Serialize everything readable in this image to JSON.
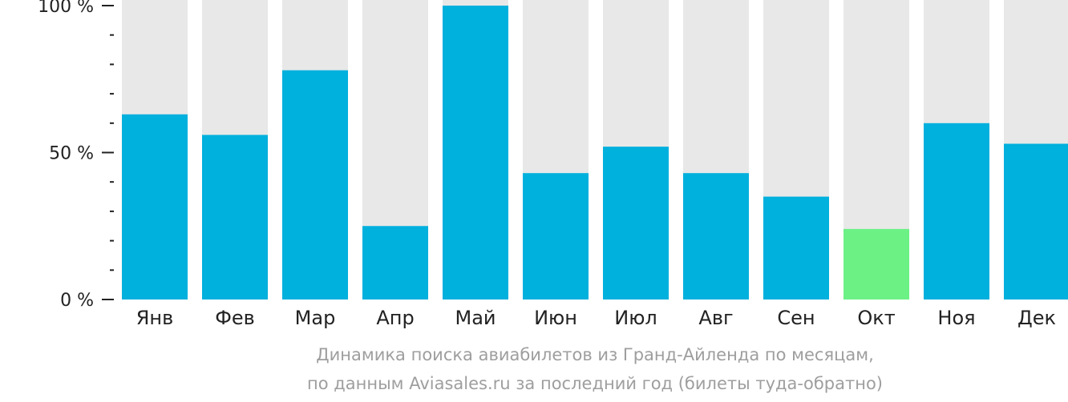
{
  "chart_data": {
    "type": "bar",
    "categories": [
      "Янв",
      "Фев",
      "Мар",
      "Апр",
      "Май",
      "Июн",
      "Июл",
      "Авг",
      "Сен",
      "Окт",
      "Ноя",
      "Дек"
    ],
    "values": [
      63,
      56,
      78,
      25,
      100,
      43,
      52,
      43,
      35,
      24,
      60,
      53
    ],
    "ylim": [
      0,
      100
    ],
    "y_ticks": [
      "0 %",
      "50 %",
      "100 %"
    ],
    "highlight_category": "Окт",
    "colors": {
      "bar": "#00b0dd",
      "highlight": "#6cf185",
      "track": "#e8e8e8",
      "axis": "#222222"
    },
    "caption_line1": "Динамика поиска авиабилетов из Гранд-Айленда по месяцам,",
    "caption_line2": "по данным Aviasales.ru за последний год (билеты туда-обратно)"
  }
}
